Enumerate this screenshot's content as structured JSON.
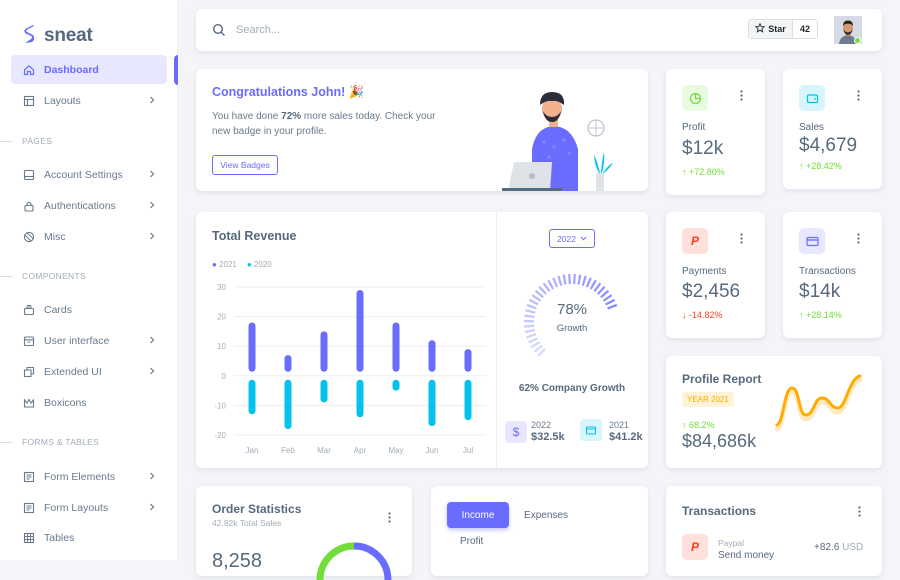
{
  "brand": {
    "name": "sneat",
    "accent": "#696cff"
  },
  "sidebar": {
    "items": [
      {
        "label": "Dashboard",
        "icon": "home-icon",
        "active": true,
        "chevron": false
      },
      {
        "label": "Layouts",
        "icon": "layout-icon",
        "chevron": true
      },
      {
        "label": "Account Settings",
        "icon": "dock-icon",
        "chevron": true
      },
      {
        "label": "Authentications",
        "icon": "lock-icon",
        "chevron": true
      },
      {
        "label": "Misc",
        "icon": "cube-icon",
        "chevron": true
      },
      {
        "label": "Cards",
        "icon": "collection-icon",
        "chevron": false
      },
      {
        "label": "User interface",
        "icon": "box-icon",
        "chevron": true
      },
      {
        "label": "Extended UI",
        "icon": "copy-icon",
        "chevron": true
      },
      {
        "label": "Boxicons",
        "icon": "crown-icon",
        "chevron": false
      },
      {
        "label": "Form Elements",
        "icon": "detail-icon",
        "chevron": true
      },
      {
        "label": "Form Layouts",
        "icon": "detail-icon",
        "chevron": true
      },
      {
        "label": "Tables",
        "icon": "table-icon",
        "chevron": false
      }
    ],
    "headers": [
      "PAGES",
      "COMPONENTS",
      "FORMS & TABLES"
    ]
  },
  "navbar": {
    "search_placeholder": "Search...",
    "star_label": "Star",
    "star_count": "42"
  },
  "welcome": {
    "title": "Congratulations John! 🎉",
    "text_before": "You have done ",
    "text_bold": "72%",
    "text_after": " more sales today. Check your new badge in your profile.",
    "button": "View Badges"
  },
  "stats": {
    "profit": {
      "label": "Profit",
      "value": "$12k",
      "trend": "+72.80%",
      "direction": "up",
      "color": "#71dd37"
    },
    "sales": {
      "label": "Sales",
      "value": "$4,679",
      "trend": "+28.42%",
      "direction": "up",
      "color": "#03c3ec"
    },
    "payments": {
      "label": "Payments",
      "value": "$2,456",
      "trend": "-14.82%",
      "direction": "down",
      "color": "#ff3e1d"
    },
    "transactions": {
      "label": "Transactions",
      "value": "$14k",
      "trend": "+28.14%",
      "direction": "up",
      "color": "#696cff"
    }
  },
  "revenue": {
    "title": "Total Revenue",
    "year_select": "2022",
    "growth_percent": "78%",
    "growth_label": "Growth",
    "growth_value": 0.78,
    "company_growth": "62% Company Growth",
    "year_a": {
      "year": "2022",
      "amount": "$32.5k"
    },
    "year_b": {
      "year": "2021",
      "amount": "$41.2k"
    }
  },
  "chart_data": {
    "type": "bar",
    "categories": [
      "Jan",
      "Feb",
      "Mar",
      "Apr",
      "May",
      "Jun",
      "Jul"
    ],
    "series": [
      {
        "name": "2021",
        "color": "#696cff",
        "values": [
          18,
          7,
          15,
          29,
          18,
          12,
          9
        ]
      },
      {
        "name": "2020",
        "color": "#03c3ec",
        "values": [
          -13,
          -18,
          -9,
          -14,
          -5,
          -17,
          -15
        ]
      }
    ],
    "yticks": [
      30,
      20,
      10,
      0,
      -10,
      -20
    ],
    "ylim": [
      -20,
      30
    ],
    "grid": true,
    "legend": "top-left"
  },
  "profile_report": {
    "title": "Profile Report",
    "badge": "YEAR 2021",
    "trend": "68.2%",
    "value": "$84,686k"
  },
  "order_stats": {
    "title": "Order Statistics",
    "subtitle": "42.82k Total Sales",
    "value": "8,258"
  },
  "income": {
    "tab_active": "Income",
    "tab_other": "Expenses",
    "row_label": "Profit"
  },
  "transactions_card": {
    "title": "Transactions",
    "item_source": "Paypal",
    "item_label": "Send money",
    "item_amount": "+82.6",
    "item_currency": "USD"
  }
}
